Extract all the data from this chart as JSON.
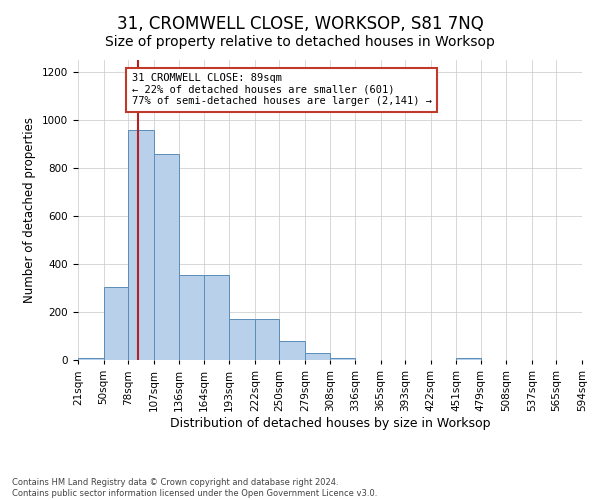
{
  "title": "31, CROMWELL CLOSE, WORKSOP, S81 7NQ",
  "subtitle": "Size of property relative to detached houses in Worksop",
  "xlabel": "Distribution of detached houses by size in Worksop",
  "ylabel": "Number of detached properties",
  "bin_edges": [
    21,
    50,
    78,
    107,
    136,
    164,
    193,
    222,
    250,
    279,
    308,
    336,
    365,
    393,
    422,
    451,
    479,
    508,
    537,
    565,
    594
  ],
  "bar_heights": [
    10,
    305,
    960,
    860,
    355,
    355,
    170,
    170,
    80,
    30,
    10,
    0,
    0,
    0,
    0,
    10,
    0,
    0,
    0,
    0
  ],
  "bar_color": "#b8d0ea",
  "bar_edge_color": "#5b8db8",
  "property_size": 89,
  "property_line_color": "#b22222",
  "annotation_line1": "31 CROMWELL CLOSE: 89sqm",
  "annotation_line2": "← 22% of detached houses are smaller (601)",
  "annotation_line3": "77% of semi-detached houses are larger (2,141) →",
  "annotation_box_color": "#ffffff",
  "annotation_box_edge": "#c0392b",
  "ylim": [
    0,
    1250
  ],
  "yticks": [
    0,
    200,
    400,
    600,
    800,
    1000,
    1200
  ],
  "background_color": "#ffffff",
  "grid_color": "#c8c8c8",
  "footer": "Contains HM Land Registry data © Crown copyright and database right 2024.\nContains public sector information licensed under the Open Government Licence v3.0.",
  "title_fontsize": 12,
  "subtitle_fontsize": 10,
  "xlabel_fontsize": 9,
  "ylabel_fontsize": 8.5,
  "tick_fontsize": 7.5,
  "annot_fontsize": 7.5
}
